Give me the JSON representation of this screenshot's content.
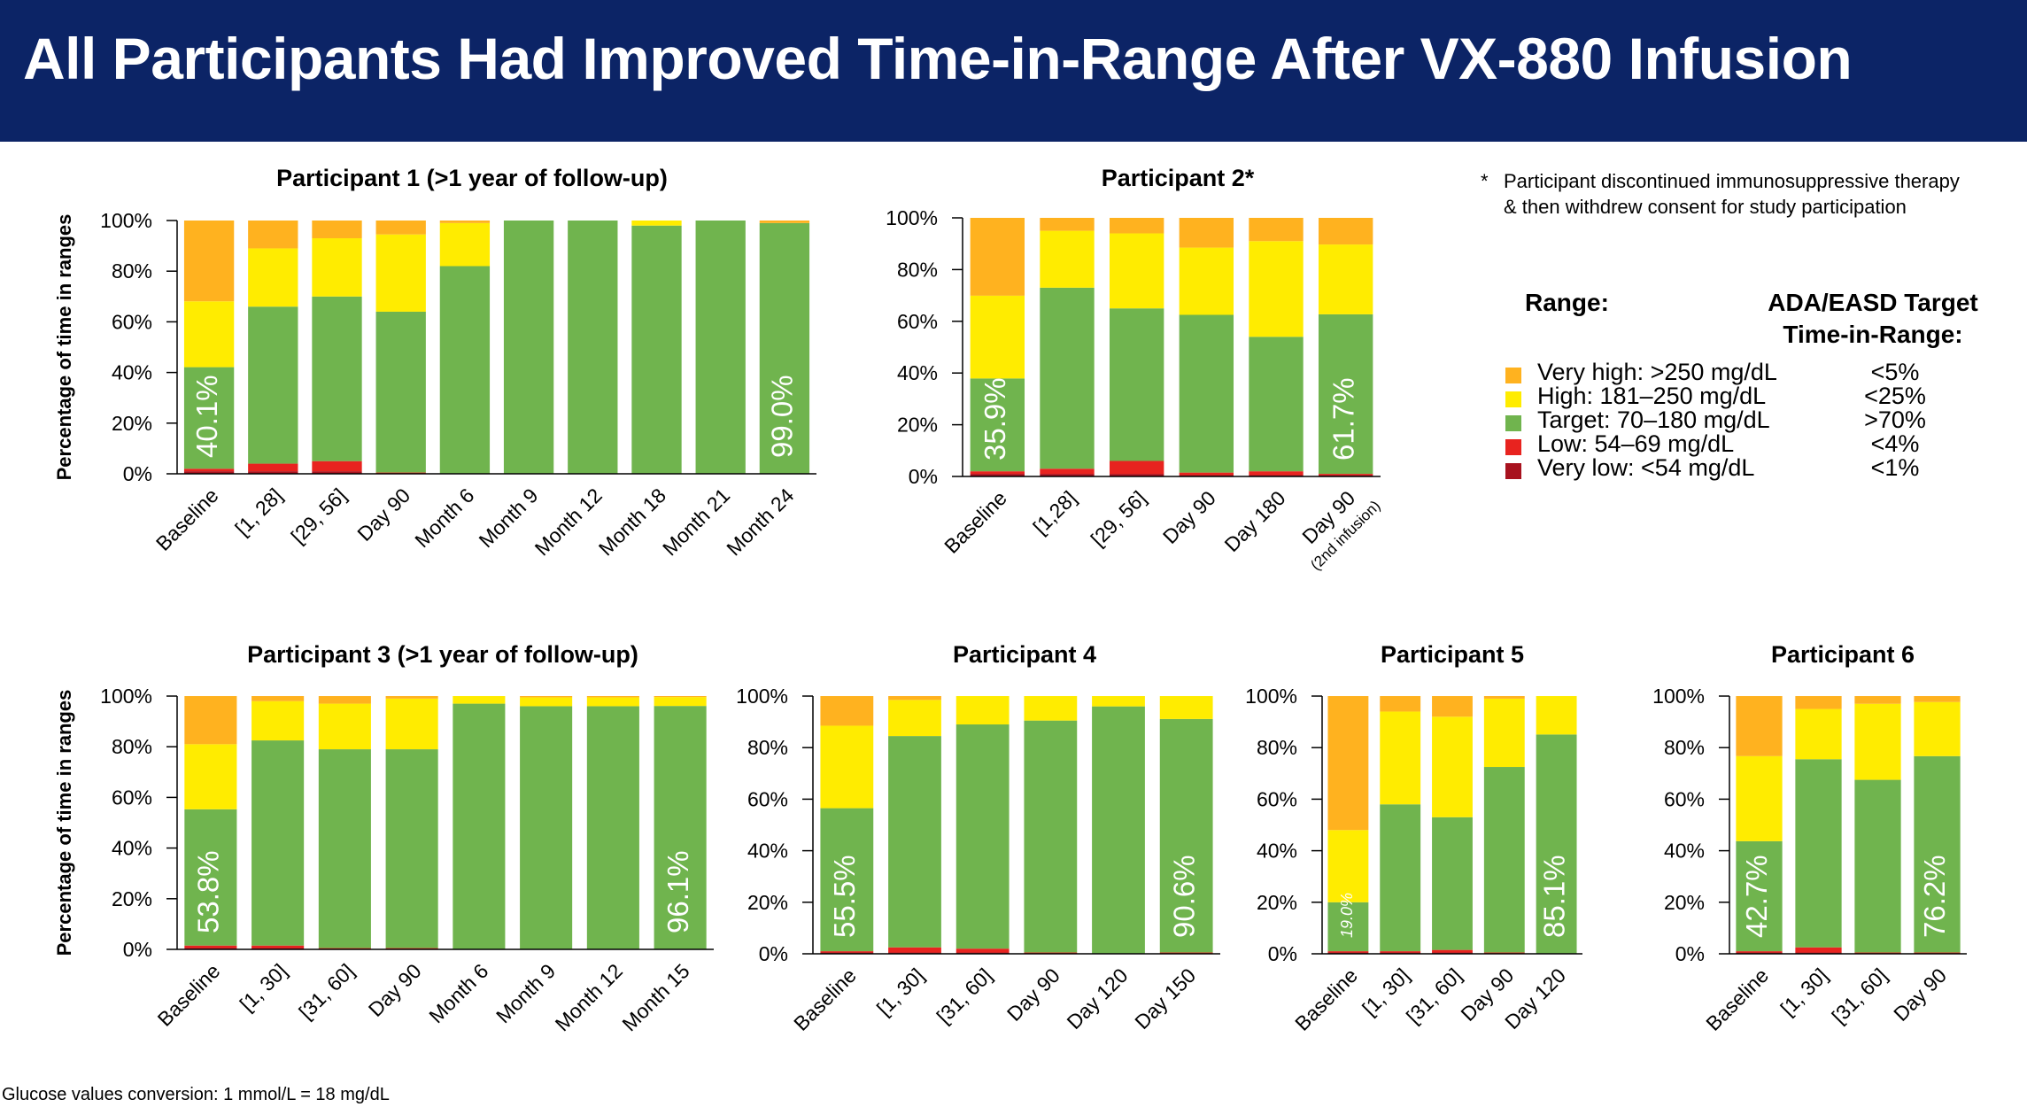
{
  "title": "All Participants Had Improved Time-in-Range After VX-880 Infusion",
  "footnote": {
    "star": "*",
    "text": "Participant discontinued immunosuppressive therapy & then withdrew consent for study participation"
  },
  "legend": {
    "range_header": "Range:",
    "target_header_line1": "ADA/EASD Target",
    "target_header_line2": "Time-in-Range:",
    "items": [
      {
        "label": "Very high: >250 mg/dL",
        "target": "<5%",
        "color": "#ffb21f"
      },
      {
        "label": "High: 181–250 mg/dL",
        "target": "<25%",
        "color": "#ffec00"
      },
      {
        "label": "Target: 70–180 mg/dL",
        "target": ">70%",
        "color": "#70b44e"
      },
      {
        "label": "Low: 54–69 mg/dL",
        "target": "<4%",
        "color": "#e8231f"
      },
      {
        "label": "Very low: <54 mg/dL",
        "target": "<1%",
        "color": "#a8121e"
      }
    ]
  },
  "conversion_note": "Glucose values conversion: 1 mmol/L = 18 mg/dL",
  "chart_data": [
    {
      "type": "bar",
      "stacked": true,
      "title": "Participant 1 (>1 year of follow-up)",
      "ylabel": "Percentage of time in ranges",
      "ylim": [
        0,
        100
      ],
      "yticks": [
        "0%",
        "20%",
        "40%",
        "60%",
        "80%",
        "100%"
      ],
      "categories": [
        "Baseline",
        "[1, 28]",
        "[29, 56]",
        "Day 90",
        "Month 6",
        "Month 9",
        "Month 12",
        "Month 18",
        "Month 21",
        "Month 24"
      ],
      "series": [
        {
          "name": "Very low: <54 mg/dL",
          "values": [
            1,
            1,
            1,
            0,
            0,
            0,
            0,
            0,
            0,
            0
          ]
        },
        {
          "name": "Low: 54–69 mg/dL",
          "values": [
            1,
            3,
            4,
            0.5,
            0,
            0,
            0,
            0,
            0,
            0
          ]
        },
        {
          "name": "Target: 70–180 mg/dL",
          "values": [
            40.1,
            62,
            65,
            63.5,
            82,
            100,
            100,
            98,
            100,
            99.0
          ]
        },
        {
          "name": "High: 181–250 mg/dL",
          "values": [
            26,
            23,
            23,
            30.5,
            17,
            0,
            0,
            2,
            0,
            0
          ]
        },
        {
          "name": "Very high: >250 mg/dL",
          "values": [
            31.9,
            11,
            7,
            5.5,
            1,
            0,
            0,
            0,
            0,
            1
          ]
        }
      ],
      "labels": [
        {
          "index": 0,
          "text": "40.1%"
        },
        {
          "index": 9,
          "text": "99.0%"
        }
      ]
    },
    {
      "type": "bar",
      "stacked": true,
      "title": "Participant 2*",
      "ylabel": "",
      "ylim": [
        0,
        100
      ],
      "yticks": [
        "0%",
        "20%",
        "40%",
        "60%",
        "80%",
        "100%"
      ],
      "categories": [
        "Baseline",
        "[1,28]",
        "[29, 56]",
        "Day 90",
        "Day 180",
        "Day 90"
      ],
      "category_sublabels": [
        "",
        "",
        "",
        "",
        "",
        "(2nd infusion)"
      ],
      "series": [
        {
          "name": "Very low: <54 mg/dL",
          "values": [
            1,
            1,
            1,
            0.5,
            0.5,
            0.5
          ]
        },
        {
          "name": "Low: 54–69 mg/dL",
          "values": [
            1,
            2,
            5,
            1,
            1.5,
            0.5
          ]
        },
        {
          "name": "Target: 70–180 mg/dL",
          "values": [
            35.9,
            70,
            59,
            61,
            52,
            61.7
          ]
        },
        {
          "name": "High: 181–250 mg/dL",
          "values": [
            32,
            22,
            29,
            26,
            37,
            27
          ]
        },
        {
          "name": "Very high: >250 mg/dL",
          "values": [
            30.1,
            5,
            6,
            11.5,
            9,
            10.3
          ]
        }
      ],
      "labels": [
        {
          "index": 0,
          "text": "35.9%"
        },
        {
          "index": 5,
          "text": "61.7%"
        }
      ]
    },
    {
      "type": "bar",
      "stacked": true,
      "title": "Participant 3 (>1 year of follow-up)",
      "ylabel": "Percentage of time in ranges",
      "ylim": [
        0,
        100
      ],
      "yticks": [
        "0%",
        "20%",
        "40%",
        "60%",
        "80%",
        "100%"
      ],
      "categories": [
        "Baseline",
        "[1, 30]",
        "[31, 60]",
        "Day 90",
        "Month 6",
        "Month 9",
        "Month 12",
        "Month 15"
      ],
      "series": [
        {
          "name": "Very low: <54 mg/dL",
          "values": [
            0.5,
            0.5,
            0,
            0,
            0,
            0,
            0,
            0
          ]
        },
        {
          "name": "Low: 54–69 mg/dL",
          "values": [
            1,
            1,
            0.5,
            0.5,
            0,
            0,
            0,
            0
          ]
        },
        {
          "name": "Target: 70–180 mg/dL",
          "values": [
            53.8,
            81,
            78.5,
            78.5,
            97,
            96,
            96,
            96.1
          ]
        },
        {
          "name": "High: 181–250 mg/dL",
          "values": [
            25.7,
            15.5,
            18,
            20,
            3,
            3.5,
            3.5,
            3.5
          ]
        },
        {
          "name": "Very high: >250 mg/dL",
          "values": [
            19,
            2,
            3,
            1,
            0,
            0.5,
            0.5,
            0.4
          ]
        }
      ],
      "labels": [
        {
          "index": 0,
          "text": "53.8%"
        },
        {
          "index": 7,
          "text": "96.1%"
        }
      ]
    },
    {
      "type": "bar",
      "stacked": true,
      "title": "Participant 4",
      "ylabel": "",
      "ylim": [
        0,
        100
      ],
      "yticks": [
        "0%",
        "20%",
        "40%",
        "60%",
        "80%",
        "100%"
      ],
      "categories": [
        "Baseline",
        "[1, 30]",
        "[31, 60]",
        "Day 90",
        "Day 120",
        "Day 150"
      ],
      "series": [
        {
          "name": "Very low: <54 mg/dL",
          "values": [
            0.5,
            0.5,
            0.5,
            0,
            0,
            0
          ]
        },
        {
          "name": "Low: 54–69 mg/dL",
          "values": [
            0.5,
            2,
            1.5,
            0.5,
            0,
            0.5
          ]
        },
        {
          "name": "Target: 70–180 mg/dL",
          "values": [
            55.5,
            82,
            87,
            90,
            96,
            90.6
          ]
        },
        {
          "name": "High: 181–250 mg/dL",
          "values": [
            32,
            14,
            11,
            9.5,
            4,
            8.9
          ]
        },
        {
          "name": "Very high: >250 mg/dL",
          "values": [
            11.5,
            1.5,
            0,
            0,
            0,
            0
          ]
        }
      ],
      "labels": [
        {
          "index": 0,
          "text": "55.5%"
        },
        {
          "index": 5,
          "text": "90.6%"
        }
      ]
    },
    {
      "type": "bar",
      "stacked": true,
      "title": "Participant 5",
      "ylabel": "",
      "ylim": [
        0,
        100
      ],
      "yticks": [
        "0%",
        "20%",
        "40%",
        "60%",
        "80%",
        "100%"
      ],
      "categories": [
        "Baseline",
        "[1, 30]",
        "[31, 60]",
        "Day 90",
        "Day 120"
      ],
      "series": [
        {
          "name": "Very low: <54 mg/dL",
          "values": [
            0.5,
            0.5,
            0.5,
            0,
            0
          ]
        },
        {
          "name": "Low: 54–69 mg/dL",
          "values": [
            0.5,
            0.5,
            1,
            0.5,
            0
          ]
        },
        {
          "name": "Target: 70–180 mg/dL",
          "values": [
            19.0,
            57,
            51.5,
            72,
            85.1
          ]
        },
        {
          "name": "High: 181–250 mg/dL",
          "values": [
            28,
            36,
            39,
            26.5,
            14.9
          ]
        },
        {
          "name": "Very high: >250 mg/dL",
          "values": [
            52,
            6,
            8,
            1,
            0
          ]
        }
      ],
      "labels": [
        {
          "index": 0,
          "text": "19.0%",
          "small": true
        },
        {
          "index": 4,
          "text": "85.1%"
        }
      ]
    },
    {
      "type": "bar",
      "stacked": true,
      "title": "Participant 6",
      "ylabel": "",
      "ylim": [
        0,
        100
      ],
      "yticks": [
        "0%",
        "20%",
        "40%",
        "60%",
        "80%",
        "100%"
      ],
      "categories": [
        "Baseline",
        "[1, 30]",
        "[31, 60]",
        "Day 90"
      ],
      "series": [
        {
          "name": "Very low: <54 mg/dL",
          "values": [
            0.5,
            0.5,
            0,
            0
          ]
        },
        {
          "name": "Low: 54–69 mg/dL",
          "values": [
            0.5,
            2,
            0.5,
            0.5
          ]
        },
        {
          "name": "Target: 70–180 mg/dL",
          "values": [
            42.7,
            73,
            67,
            76.2
          ]
        },
        {
          "name": "High: 181–250 mg/dL",
          "values": [
            33,
            19.5,
            29.5,
            21
          ]
        },
        {
          "name": "Very high: >250 mg/dL",
          "values": [
            23.3,
            5,
            3,
            2.3
          ]
        }
      ],
      "labels": [
        {
          "index": 0,
          "text": "42.7%"
        },
        {
          "index": 3,
          "text": "76.2%"
        }
      ]
    }
  ]
}
